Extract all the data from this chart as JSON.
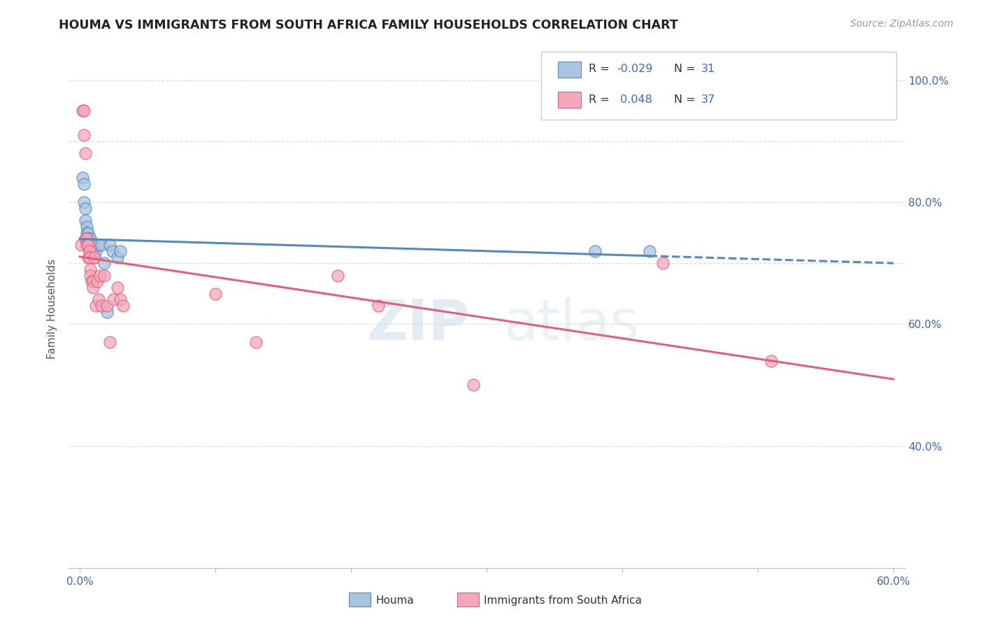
{
  "title": "HOUMA VS IMMIGRANTS FROM SOUTH AFRICA FAMILY HOUSEHOLDS CORRELATION CHART",
  "source": "Source: ZipAtlas.com",
  "ylabel": "Family Households",
  "x_min": 0.0,
  "x_max": 0.6,
  "y_min": 0.2,
  "y_max": 1.05,
  "houma_R": "-0.029",
  "houma_N": "31",
  "immigrants_R": "0.048",
  "immigrants_N": "37",
  "houma_color": "#a8c4e0",
  "immigrants_color": "#f4a7b9",
  "houma_line_color": "#5588bb",
  "immigrants_line_color": "#e06080",
  "watermark_zip": "ZIP",
  "watermark_atlas": "atlas",
  "houma_scatter_x": [
    0.002,
    0.003,
    0.003,
    0.004,
    0.004,
    0.005,
    0.005,
    0.005,
    0.006,
    0.006,
    0.007,
    0.007,
    0.007,
    0.008,
    0.008,
    0.009,
    0.009,
    0.01,
    0.01,
    0.011,
    0.012,
    0.014,
    0.016,
    0.018,
    0.02,
    0.022,
    0.024,
    0.028,
    0.03,
    0.38,
    0.42
  ],
  "houma_scatter_y": [
    0.84,
    0.83,
    0.8,
    0.79,
    0.77,
    0.76,
    0.75,
    0.74,
    0.75,
    0.74,
    0.74,
    0.73,
    0.72,
    0.74,
    0.73,
    0.73,
    0.72,
    0.73,
    0.72,
    0.71,
    0.72,
    0.73,
    0.73,
    0.7,
    0.62,
    0.73,
    0.72,
    0.71,
    0.72,
    0.72,
    0.72
  ],
  "immigrants_scatter_x": [
    0.001,
    0.002,
    0.003,
    0.003,
    0.004,
    0.004,
    0.005,
    0.005,
    0.006,
    0.006,
    0.007,
    0.007,
    0.008,
    0.008,
    0.009,
    0.01,
    0.01,
    0.011,
    0.012,
    0.013,
    0.014,
    0.015,
    0.016,
    0.018,
    0.02,
    0.022,
    0.025,
    0.028,
    0.03,
    0.032,
    0.1,
    0.13,
    0.19,
    0.22,
    0.29,
    0.43,
    0.51
  ],
  "immigrants_scatter_y": [
    0.73,
    0.95,
    0.95,
    0.91,
    0.88,
    0.74,
    0.74,
    0.73,
    0.73,
    0.71,
    0.72,
    0.71,
    0.69,
    0.68,
    0.67,
    0.67,
    0.66,
    0.71,
    0.63,
    0.67,
    0.64,
    0.68,
    0.63,
    0.68,
    0.63,
    0.57,
    0.64,
    0.66,
    0.64,
    0.63,
    0.65,
    0.57,
    0.68,
    0.63,
    0.5,
    0.7,
    0.54
  ]
}
